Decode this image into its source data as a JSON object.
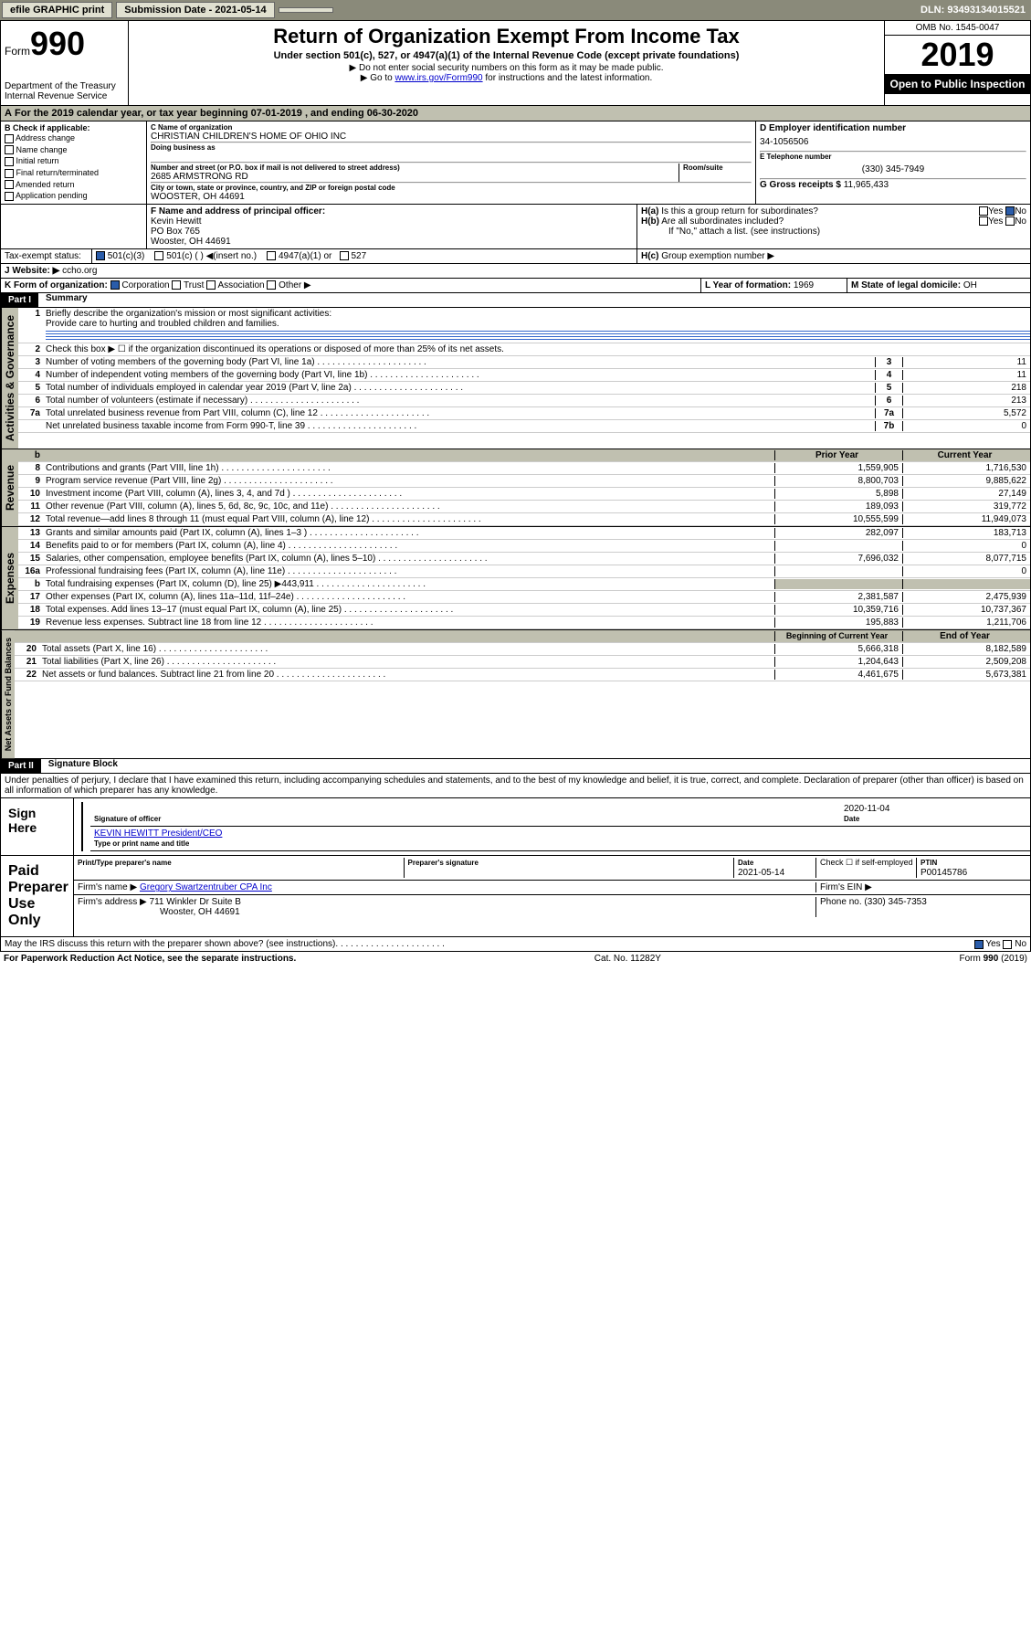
{
  "toolbar": {
    "efile": "efile GRAPHIC print",
    "submission": "Submission Date - 2021-05-14",
    "dln": "DLN: 93493134015521"
  },
  "header": {
    "form_prefix": "Form",
    "form_number": "990",
    "dept": "Department of the Treasury\nInternal Revenue Service",
    "title": "Return of Organization Exempt From Income Tax",
    "subtitle": "Under section 501(c), 527, or 4947(a)(1) of the Internal Revenue Code (except private foundations)",
    "warn": "▶ Do not enter social security numbers on this form as it may be made public.",
    "goto": "▶ Go to www.irs.gov/Form990 for instructions and the latest information.",
    "omb": "OMB No. 1545-0047",
    "year": "2019",
    "open": "Open to Public Inspection"
  },
  "period": "For the 2019 calendar year, or tax year beginning 07-01-2019     , and ending 06-30-2020",
  "checkB": {
    "label": "B Check if applicable:",
    "opts": [
      "Address change",
      "Name change",
      "Initial return",
      "Final return/terminated",
      "Amended return",
      "Application pending"
    ]
  },
  "org": {
    "name_label": "C Name of organization",
    "name": "CHRISTIAN CHILDREN'S HOME OF OHIO INC",
    "dba_label": "Doing business as",
    "addr_label": "Number and street (or P.O. box if mail is not delivered to street address)",
    "room_label": "Room/suite",
    "addr": "2685 ARMSTRONG RD",
    "city_label": "City or town, state or province, country, and ZIP or foreign postal code",
    "city": "WOOSTER, OH  44691"
  },
  "ein": {
    "label": "D Employer identification number",
    "value": "34-1056506"
  },
  "phone": {
    "label": "E Telephone number",
    "value": "(330) 345-7949"
  },
  "gross": {
    "label": "G Gross receipts $",
    "value": "11,965,433"
  },
  "officer": {
    "label": "F Name and address of principal officer:",
    "name": "Kevin Hewitt",
    "addr1": "PO Box 765",
    "addr2": "Wooster, OH  44691"
  },
  "h": {
    "a": "Is this a group return for subordinates?",
    "b": "Are all subordinates included?",
    "b_note": "If \"No,\" attach a list. (see instructions)",
    "c": "Group exemption number ▶"
  },
  "tax_status": "Tax-exempt status:",
  "status_opts": [
    "501(c)(3)",
    "501(c) (  ) ◀(insert no.)",
    "4947(a)(1) or",
    "527"
  ],
  "website": {
    "label": "Website: ▶",
    "value": "ccho.org"
  },
  "k": {
    "label": "K Form of organization:",
    "opts": [
      "Corporation",
      "Trust",
      "Association",
      "Other ▶"
    ]
  },
  "l": {
    "label": "L Year of formation:",
    "value": "1969"
  },
  "m": {
    "label": "M State of legal domicile:",
    "value": "OH"
  },
  "part1": {
    "header": "Part I",
    "title": "Summary",
    "mission_label": "Briefly describe the organization's mission or most significant activities:",
    "mission": "Provide care to hurting and troubled children and families.",
    "line2": "Check this box ▶ ☐ if the organization discontinued its operations or disposed of more than 25% of its net assets.",
    "lines": [
      {
        "n": "3",
        "t": "Number of voting members of the governing body (Part VI, line 1a)",
        "box": "3",
        "v": "11"
      },
      {
        "n": "4",
        "t": "Number of independent voting members of the governing body (Part VI, line 1b)",
        "box": "4",
        "v": "11"
      },
      {
        "n": "5",
        "t": "Total number of individuals employed in calendar year 2019 (Part V, line 2a)",
        "box": "5",
        "v": "218"
      },
      {
        "n": "6",
        "t": "Total number of volunteers (estimate if necessary)",
        "box": "6",
        "v": "213"
      },
      {
        "n": "7a",
        "t": "Total unrelated business revenue from Part VIII, column (C), line 12",
        "box": "7a",
        "v": "5,572"
      },
      {
        "n": "",
        "t": "Net unrelated business taxable income from Form 990-T, line 39",
        "box": "7b",
        "v": "0"
      }
    ],
    "col_prior": "Prior Year",
    "col_current": "Current Year",
    "revenue": [
      {
        "n": "8",
        "t": "Contributions and grants (Part VIII, line 1h)",
        "p": "1,559,905",
        "c": "1,716,530"
      },
      {
        "n": "9",
        "t": "Program service revenue (Part VIII, line 2g)",
        "p": "8,800,703",
        "c": "9,885,622"
      },
      {
        "n": "10",
        "t": "Investment income (Part VIII, column (A), lines 3, 4, and 7d )",
        "p": "5,898",
        "c": "27,149"
      },
      {
        "n": "11",
        "t": "Other revenue (Part VIII, column (A), lines 5, 6d, 8c, 9c, 10c, and 11e)",
        "p": "189,093",
        "c": "319,772"
      },
      {
        "n": "12",
        "t": "Total revenue—add lines 8 through 11 (must equal Part VIII, column (A), line 12)",
        "p": "10,555,599",
        "c": "11,949,073"
      }
    ],
    "expenses": [
      {
        "n": "13",
        "t": "Grants and similar amounts paid (Part IX, column (A), lines 1–3 )",
        "p": "282,097",
        "c": "183,713"
      },
      {
        "n": "14",
        "t": "Benefits paid to or for members (Part IX, column (A), line 4)",
        "p": "",
        "c": "0"
      },
      {
        "n": "15",
        "t": "Salaries, other compensation, employee benefits (Part IX, column (A), lines 5–10)",
        "p": "7,696,032",
        "c": "8,077,715"
      },
      {
        "n": "16a",
        "t": "Professional fundraising fees (Part IX, column (A), line 11e)",
        "p": "",
        "c": "0"
      },
      {
        "n": "b",
        "t": "Total fundraising expenses (Part IX, column (D), line 25) ▶443,911",
        "p": "",
        "c": "",
        "grey": true
      },
      {
        "n": "17",
        "t": "Other expenses (Part IX, column (A), lines 11a–11d, 11f–24e)",
        "p": "2,381,587",
        "c": "2,475,939"
      },
      {
        "n": "18",
        "t": "Total expenses. Add lines 13–17 (must equal Part IX, column (A), line 25)",
        "p": "10,359,716",
        "c": "10,737,367"
      },
      {
        "n": "19",
        "t": "Revenue less expenses. Subtract line 18 from line 12",
        "p": "195,883",
        "c": "1,211,706"
      }
    ],
    "col_begin": "Beginning of Current Year",
    "col_end": "End of Year",
    "netassets": [
      {
        "n": "20",
        "t": "Total assets (Part X, line 16)",
        "p": "5,666,318",
        "c": "8,182,589"
      },
      {
        "n": "21",
        "t": "Total liabilities (Part X, line 26)",
        "p": "1,204,643",
        "c": "2,509,208"
      },
      {
        "n": "22",
        "t": "Net assets or fund balances. Subtract line 21 from line 20",
        "p": "4,461,675",
        "c": "5,673,381"
      }
    ]
  },
  "vert_labels": {
    "activities": "Activities & Governance",
    "revenue": "Revenue",
    "expenses": "Expenses",
    "net": "Net Assets or Fund Balances"
  },
  "part2": {
    "header": "Part II",
    "title": "Signature Block",
    "perjury": "Under penalties of perjury, I declare that I have examined this return, including accompanying schedules and statements, and to the best of my knowledge and belief, it is true, correct, and complete. Declaration of preparer (other than officer) is based on all information of which preparer has any knowledge."
  },
  "sign": {
    "here": "Sign Here",
    "sig_label": "Signature of officer",
    "date": "2020-11-04",
    "date_label": "Date",
    "name": "KEVIN HEWITT President/CEO",
    "name_label": "Type or print name and title"
  },
  "paid": {
    "label": "Paid Preparer Use Only",
    "print_label": "Print/Type preparer's name",
    "sig_label": "Preparer's signature",
    "date_label": "Date",
    "date": "2021-05-14",
    "check_label": "Check ☐ if self-employed",
    "ptin_label": "PTIN",
    "ptin": "P00145786",
    "firm_label": "Firm's name    ▶",
    "firm": "Gregory Swartzentruber CPA Inc",
    "ein_label": "Firm's EIN ▶",
    "addr_label": "Firm's address ▶",
    "addr": "711 Winkler Dr Suite B",
    "city": "Wooster, OH  44691",
    "phone_label": "Phone no.",
    "phone": "(330) 345-7353"
  },
  "discuss": "May the IRS discuss this return with the preparer shown above? (see instructions)",
  "footer": {
    "paperwork": "For Paperwork Reduction Act Notice, see the separate instructions.",
    "cat": "Cat. No. 11282Y",
    "form": "Form 990 (2019)"
  }
}
